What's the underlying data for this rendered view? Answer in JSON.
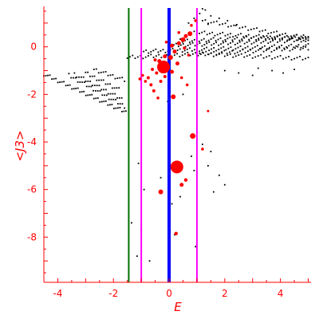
{
  "chart_data": {
    "type": "scatter",
    "title": "",
    "xlabel": "E",
    "ylabel": "<J3>",
    "xlim": [
      -4.5,
      5.1
    ],
    "ylim": [
      -9.9,
      1.7
    ],
    "xticks": [
      -4,
      -2,
      0,
      2,
      4
    ],
    "yticks": [
      0,
      -2,
      -4,
      -6,
      -8
    ],
    "grid": false,
    "legend": "none",
    "colors": {
      "axes": "#ff0000",
      "black_points": "#000000",
      "red_points": "#ff0000",
      "line_green": "#007000",
      "line_magenta": "#ff00ff",
      "line_blue": "#0000ff"
    },
    "vertical_lines": [
      {
        "x": -1.45,
        "color": "#007000"
      },
      {
        "x": -1.0,
        "color": "#ff00ff"
      },
      {
        "x": 0.0,
        "color": "#0000ff"
      },
      {
        "x": 1.0,
        "color": "#ff00ff"
      }
    ],
    "black_bands": [
      {
        "x_start": -4.5,
        "x_end": -1.55,
        "y_start": -1.15,
        "y_end": -2.75,
        "points": 42
      },
      {
        "x_start": -3.6,
        "x_end": -1.6,
        "y_start": -1.2,
        "y_end": -2.5,
        "points": 26
      },
      {
        "x_start": -3.4,
        "x_end": -1.7,
        "y_start": -1.15,
        "y_end": -2.2,
        "points": 22
      },
      {
        "x_start": -3.0,
        "x_end": -1.8,
        "y_start": -1.1,
        "y_end": -1.8,
        "points": 16
      },
      {
        "x_start": -2.7,
        "x_end": -1.6,
        "y_start": -0.95,
        "y_end": -1.4,
        "points": 14
      },
      {
        "x_start": -1.5,
        "x_end": 5.0,
        "y_start": -0.45,
        "y_end": -0.05,
        "points": 70
      },
      {
        "x_start": -1.0,
        "x_end": 5.0,
        "y_start": -0.2,
        "y_end": 0.05,
        "points": 70
      },
      {
        "x_start": 0.0,
        "x_end": 5.0,
        "y_start": 0.05,
        "y_end": 0.3,
        "points": 60
      },
      {
        "x_start": 0.4,
        "x_end": 5.0,
        "y_start": 0.25,
        "y_end": 0.45,
        "points": 55
      },
      {
        "x_start": 0.9,
        "x_end": 5.0,
        "y_start": 0.6,
        "y_end": 0.3,
        "points": 45
      },
      {
        "x_start": 1.1,
        "x_end": 5.0,
        "y_start": -0.3,
        "y_end": -0.5,
        "points": 40
      },
      {
        "x_start": 1.2,
        "x_end": 5.0,
        "y_start": 1.1,
        "y_end": 0.35,
        "points": 38
      }
    ],
    "black_scatter": [
      [
        1.2,
        1.6
      ],
      [
        1.3,
        1.55
      ],
      [
        1.1,
        1.4
      ],
      [
        1.5,
        1.3
      ],
      [
        0.9,
        1.2
      ],
      [
        1.8,
        1.2
      ],
      [
        2.1,
        1.1
      ],
      [
        0.7,
        1.0
      ],
      [
        1.4,
        0.95
      ],
      [
        2.4,
        0.9
      ],
      [
        2.5,
        -1.1
      ],
      [
        3.2,
        -0.9
      ],
      [
        3.7,
        -1.0
      ],
      [
        4.1,
        -1.1
      ],
      [
        4.5,
        -0.95
      ],
      [
        3.0,
        -1.2
      ],
      [
        2.0,
        -1.0
      ],
      [
        -1.1,
        -4.9
      ],
      [
        -1.35,
        -7.4
      ],
      [
        -1.0,
        -7.7
      ],
      [
        -1.15,
        -8.8
      ],
      [
        -0.7,
        -9.0
      ],
      [
        -0.9,
        -6.0
      ],
      [
        -0.3,
        -5.5
      ],
      [
        0.9,
        -5.2
      ],
      [
        1.4,
        -5.0
      ],
      [
        1.8,
        -5.4
      ],
      [
        1.5,
        -4.4
      ],
      [
        1.2,
        -4.1
      ],
      [
        0.8,
        -4.6
      ],
      [
        1.6,
        -6.1
      ],
      [
        2.0,
        -5.8
      ],
      [
        0.4,
        -6.3
      ],
      [
        0.1,
        -6.6
      ],
      [
        0.2,
        -7.9
      ],
      [
        0.95,
        -8.4
      ],
      [
        -0.05,
        -2.3
      ],
      [
        0.5,
        -2.0
      ]
    ],
    "red_points": [
      {
        "x": -0.2,
        "y": -0.85,
        "size": 8
      },
      {
        "x": 0.28,
        "y": -5.05,
        "size": 8
      },
      {
        "x": 0.85,
        "y": -3.75,
        "size": 3.5
      },
      {
        "x": -0.3,
        "y": -6.1,
        "size": 3
      },
      {
        "x": 0.15,
        "y": -2.1,
        "size": 3
      },
      {
        "x": 0.45,
        "y": -5.8,
        "size": 2.5
      },
      {
        "x": 0.25,
        "y": -7.85,
        "size": 2.2
      },
      {
        "x": 0.6,
        "y": -5.6,
        "size": 2.2
      },
      {
        "x": 1.2,
        "y": -4.3,
        "size": 1.8
      },
      {
        "x": 1.4,
        "y": -2.7,
        "size": 1.5
      },
      {
        "x": 0.75,
        "y": 0.55,
        "size": 3
      },
      {
        "x": 0.6,
        "y": 0.45,
        "size": 2.5
      },
      {
        "x": 0.5,
        "y": 0.3,
        "size": 3
      },
      {
        "x": 0.35,
        "y": 0.15,
        "size": 2.5
      },
      {
        "x": 0.1,
        "y": 0.05,
        "size": 2.5
      },
      {
        "x": 0.2,
        "y": -0.2,
        "size": 2.5
      },
      {
        "x": 0.55,
        "y": -0.05,
        "size": 2
      },
      {
        "x": 0.05,
        "y": -0.45,
        "size": 3
      },
      {
        "x": -0.15,
        "y": -0.4,
        "size": 2.5
      },
      {
        "x": -0.35,
        "y": -0.6,
        "size": 2.5
      },
      {
        "x": -0.5,
        "y": -0.55,
        "size": 2
      },
      {
        "x": 0.3,
        "y": -0.7,
        "size": 2.5
      },
      {
        "x": 0.1,
        "y": -1.05,
        "size": 2.5
      },
      {
        "x": -0.45,
        "y": -1.1,
        "size": 2
      },
      {
        "x": -0.6,
        "y": -0.95,
        "size": 2
      },
      {
        "x": -0.75,
        "y": -1.3,
        "size": 2
      },
      {
        "x": -0.65,
        "y": -1.6,
        "size": 2
      },
      {
        "x": -0.55,
        "y": -1.85,
        "size": 2
      },
      {
        "x": -0.3,
        "y": -1.45,
        "size": 2
      },
      {
        "x": -0.15,
        "y": -1.25,
        "size": 2
      },
      {
        "x": -0.85,
        "y": -1.45,
        "size": 1.8
      },
      {
        "x": -0.95,
        "y": -1.2,
        "size": 1.8
      },
      {
        "x": -1.05,
        "y": -1.35,
        "size": 1.8
      },
      {
        "x": -0.4,
        "y": -2.15,
        "size": 1.8
      },
      {
        "x": 0.45,
        "y": -1.3,
        "size": 1.8
      },
      {
        "x": 0.65,
        "y": -1.6,
        "size": 1.8
      },
      {
        "x": 0.8,
        "y": 0.9,
        "size": 1.8
      },
      {
        "x": 0.95,
        "y": 1.1,
        "size": 1.8
      },
      {
        "x": 0.35,
        "y": 0.6,
        "size": 1.8
      },
      {
        "x": -0.1,
        "y": 0.2,
        "size": 1.8
      },
      {
        "x": 0.7,
        "y": -0.35,
        "size": 1.8
      }
    ]
  }
}
